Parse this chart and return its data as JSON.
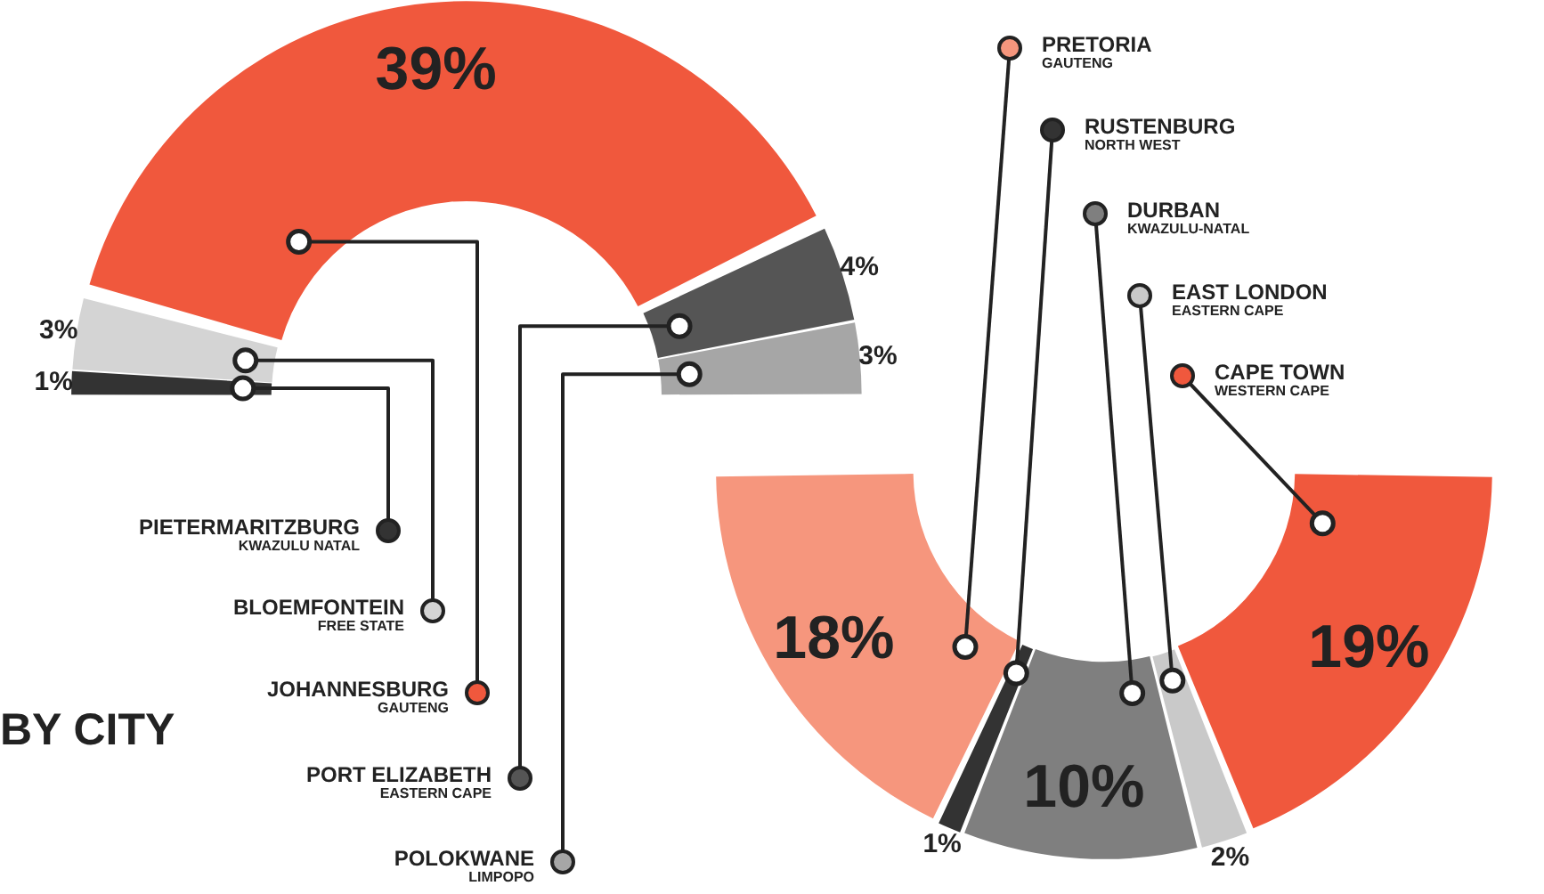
{
  "chart_data": [
    {
      "type": "donut",
      "title": "BY CITY",
      "legend": "bottom",
      "categories": [
        "PIETERMARITZBURG",
        "BLOEMFONTEIN",
        "JOHANNESBURG",
        "PORT ELIZABETH",
        "POLOKWANE"
      ],
      "values": [
        1,
        3,
        39,
        4,
        3
      ],
      "value_labels": [
        "1%",
        "3%",
        "39%",
        "4%",
        "3%"
      ],
      "colors": [
        "#333333",
        "#d4d4d4",
        "#f0583d",
        "#555555",
        "#a6a6a6"
      ],
      "annotations": [
        {
          "text": "KWAZULU NATAL",
          "x": "PIETERMARITZBURG"
        },
        {
          "text": "FREE STATE",
          "x": "BLOEMFONTEIN"
        },
        {
          "text": "GAUTENG",
          "x": "JOHANNESBURG"
        },
        {
          "text": "EASTERN CAPE",
          "x": "PORT ELIZABETH"
        },
        {
          "text": "LIMPOPO",
          "x": "POLOKWANE"
        }
      ]
    },
    {
      "type": "donut",
      "legend": "top",
      "categories": [
        "CAPE TOWN",
        "EAST LONDON",
        "DURBAN",
        "RUSTENBURG",
        "PRETORIA"
      ],
      "values": [
        19,
        2,
        10,
        1,
        18
      ],
      "value_labels": [
        "19%",
        "2%",
        "10%",
        "1%",
        "18%"
      ],
      "colors": [
        "#f0583d",
        "#c9c9c9",
        "#7f7f7f",
        "#333333",
        "#f6967d"
      ],
      "annotations": [
        {
          "text": "WESTERN CAPE",
          "x": "CAPE TOWN"
        },
        {
          "text": "EASTERN CAPE",
          "x": "EAST LONDON"
        },
        {
          "text": "KWAZULU-NATAL",
          "x": "DURBAN"
        },
        {
          "text": "NORTH WEST",
          "x": "RUSTENBURG"
        },
        {
          "text": "GAUTENG",
          "x": "PRETORIA"
        }
      ]
    }
  ]
}
